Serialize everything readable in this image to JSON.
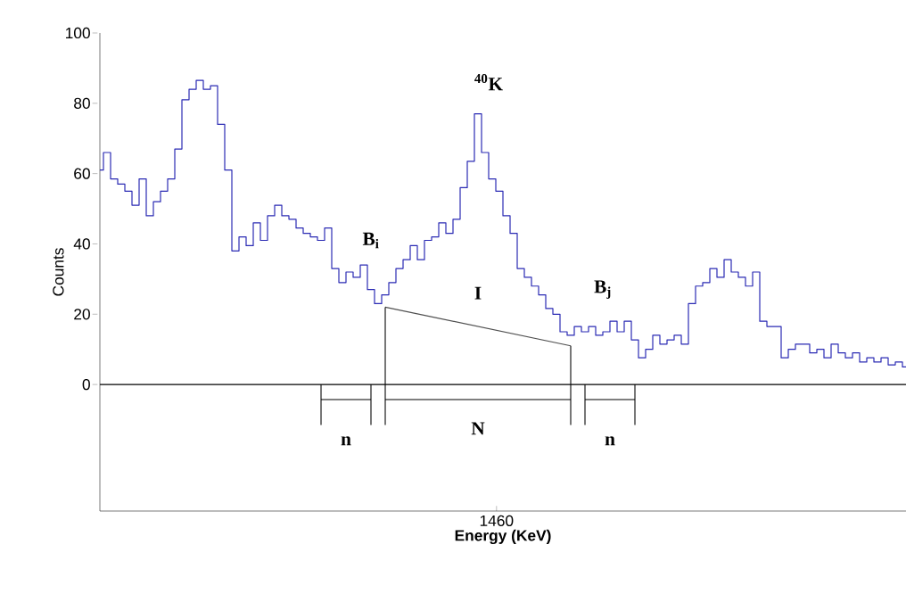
{
  "chart_data": {
    "type": "step",
    "xlabel": "Energy (KeV)",
    "ylabel": "Counts",
    "categories": [
      null,
      null,
      null,
      null,
      null,
      null,
      null,
      null,
      null,
      null,
      null,
      null,
      null,
      null,
      null,
      null,
      null,
      null,
      null,
      null,
      null,
      null,
      null,
      null,
      null,
      null,
      null,
      null,
      null,
      null,
      null,
      null,
      null,
      null,
      null,
      null,
      null,
      null,
      null,
      null,
      null,
      null,
      null,
      null,
      null,
      null,
      null,
      null,
      null,
      null,
      null,
      null,
      null,
      null,
      null,
      null,
      null,
      null,
      null,
      null,
      null,
      null,
      null,
      null,
      null,
      null,
      null,
      null,
      null,
      null,
      null,
      null,
      null,
      null,
      null,
      null,
      null,
      null,
      null,
      null,
      null,
      null,
      null,
      null,
      null,
      null,
      null,
      null,
      null,
      null,
      null,
      null,
      null,
      null,
      null,
      null,
      null,
      null,
      null,
      null,
      null,
      null,
      null,
      null,
      null,
      null,
      null,
      null,
      null,
      null,
      null,
      null,
      null,
      null
    ],
    "series": [
      {
        "color": "#2b2bb4",
        "values": [
          61,
          66,
          58.5,
          57,
          55,
          51,
          58.5,
          48,
          52,
          55,
          58.5,
          67,
          81,
          84,
          86.5,
          84,
          85,
          74,
          61,
          38,
          42,
          39.5,
          46,
          41,
          48,
          51,
          48,
          47,
          44.5,
          43,
          42,
          41,
          44.5,
          33,
          29,
          32,
          30.5,
          34,
          27,
          23,
          25.5,
          29,
          33,
          35.5,
          39.5,
          35.5,
          41,
          42,
          46,
          43,
          47,
          56,
          63.5,
          77,
          66,
          58.5,
          55,
          48,
          43,
          33,
          30.5,
          28,
          25.5,
          21.6,
          20,
          15,
          14,
          16.5,
          15,
          16.5,
          14,
          15,
          18,
          15,
          18,
          12.7,
          7.6,
          10,
          14,
          11.5,
          12.7,
          14,
          11.5,
          23,
          28,
          29,
          33,
          30.5,
          35.5,
          32,
          30.5,
          28,
          32,
          18,
          16.5,
          16.5,
          7.6,
          10,
          11.5,
          11.5,
          9,
          10,
          7.6,
          11.5,
          9,
          7.6,
          9,
          6.4,
          7.6,
          6.4,
          7.6,
          5.6,
          6.4,
          5
        ]
      },
      {
        "type": "line",
        "color": "#505050",
        "values": [
          null,
          null,
          null,
          null,
          null,
          null,
          null,
          null,
          null,
          null,
          null,
          null,
          null,
          null,
          null,
          null,
          null,
          null,
          null,
          null,
          null,
          null,
          null,
          null,
          null,
          null,
          null,
          null,
          null,
          null,
          null,
          null,
          null,
          null,
          null,
          null,
          null,
          null,
          null,
          null,
          22,
          null,
          null,
          null,
          null,
          null,
          null,
          null,
          null,
          null,
          null,
          null,
          null,
          null,
          null,
          null,
          null,
          null,
          null,
          null,
          null,
          null,
          null,
          null,
          null,
          null,
          11,
          null,
          null,
          null,
          null,
          null,
          null,
          null,
          null,
          null,
          null,
          null,
          null,
          null,
          null,
          null,
          null,
          null,
          null,
          null,
          null,
          null,
          null,
          null,
          null,
          null,
          null,
          null,
          null,
          null,
          null,
          null,
          null,
          null,
          null,
          null,
          null,
          null,
          null,
          null,
          null,
          null,
          null,
          null,
          null,
          null,
          null,
          null
        ]
      }
    ],
    "ylim": [
      -36,
      100
    ],
    "yticks": [
      0,
      20,
      40,
      60,
      80,
      100
    ],
    "ref_lines": [
      {
        "axis": "y",
        "value": 0,
        "color": "#000000"
      }
    ],
    "annotations": [
      "$^{40}$K",
      "B$_{i}$",
      "I",
      "B$_{j}$",
      "n",
      "N",
      "n",
      "1460"
    ]
  }
}
